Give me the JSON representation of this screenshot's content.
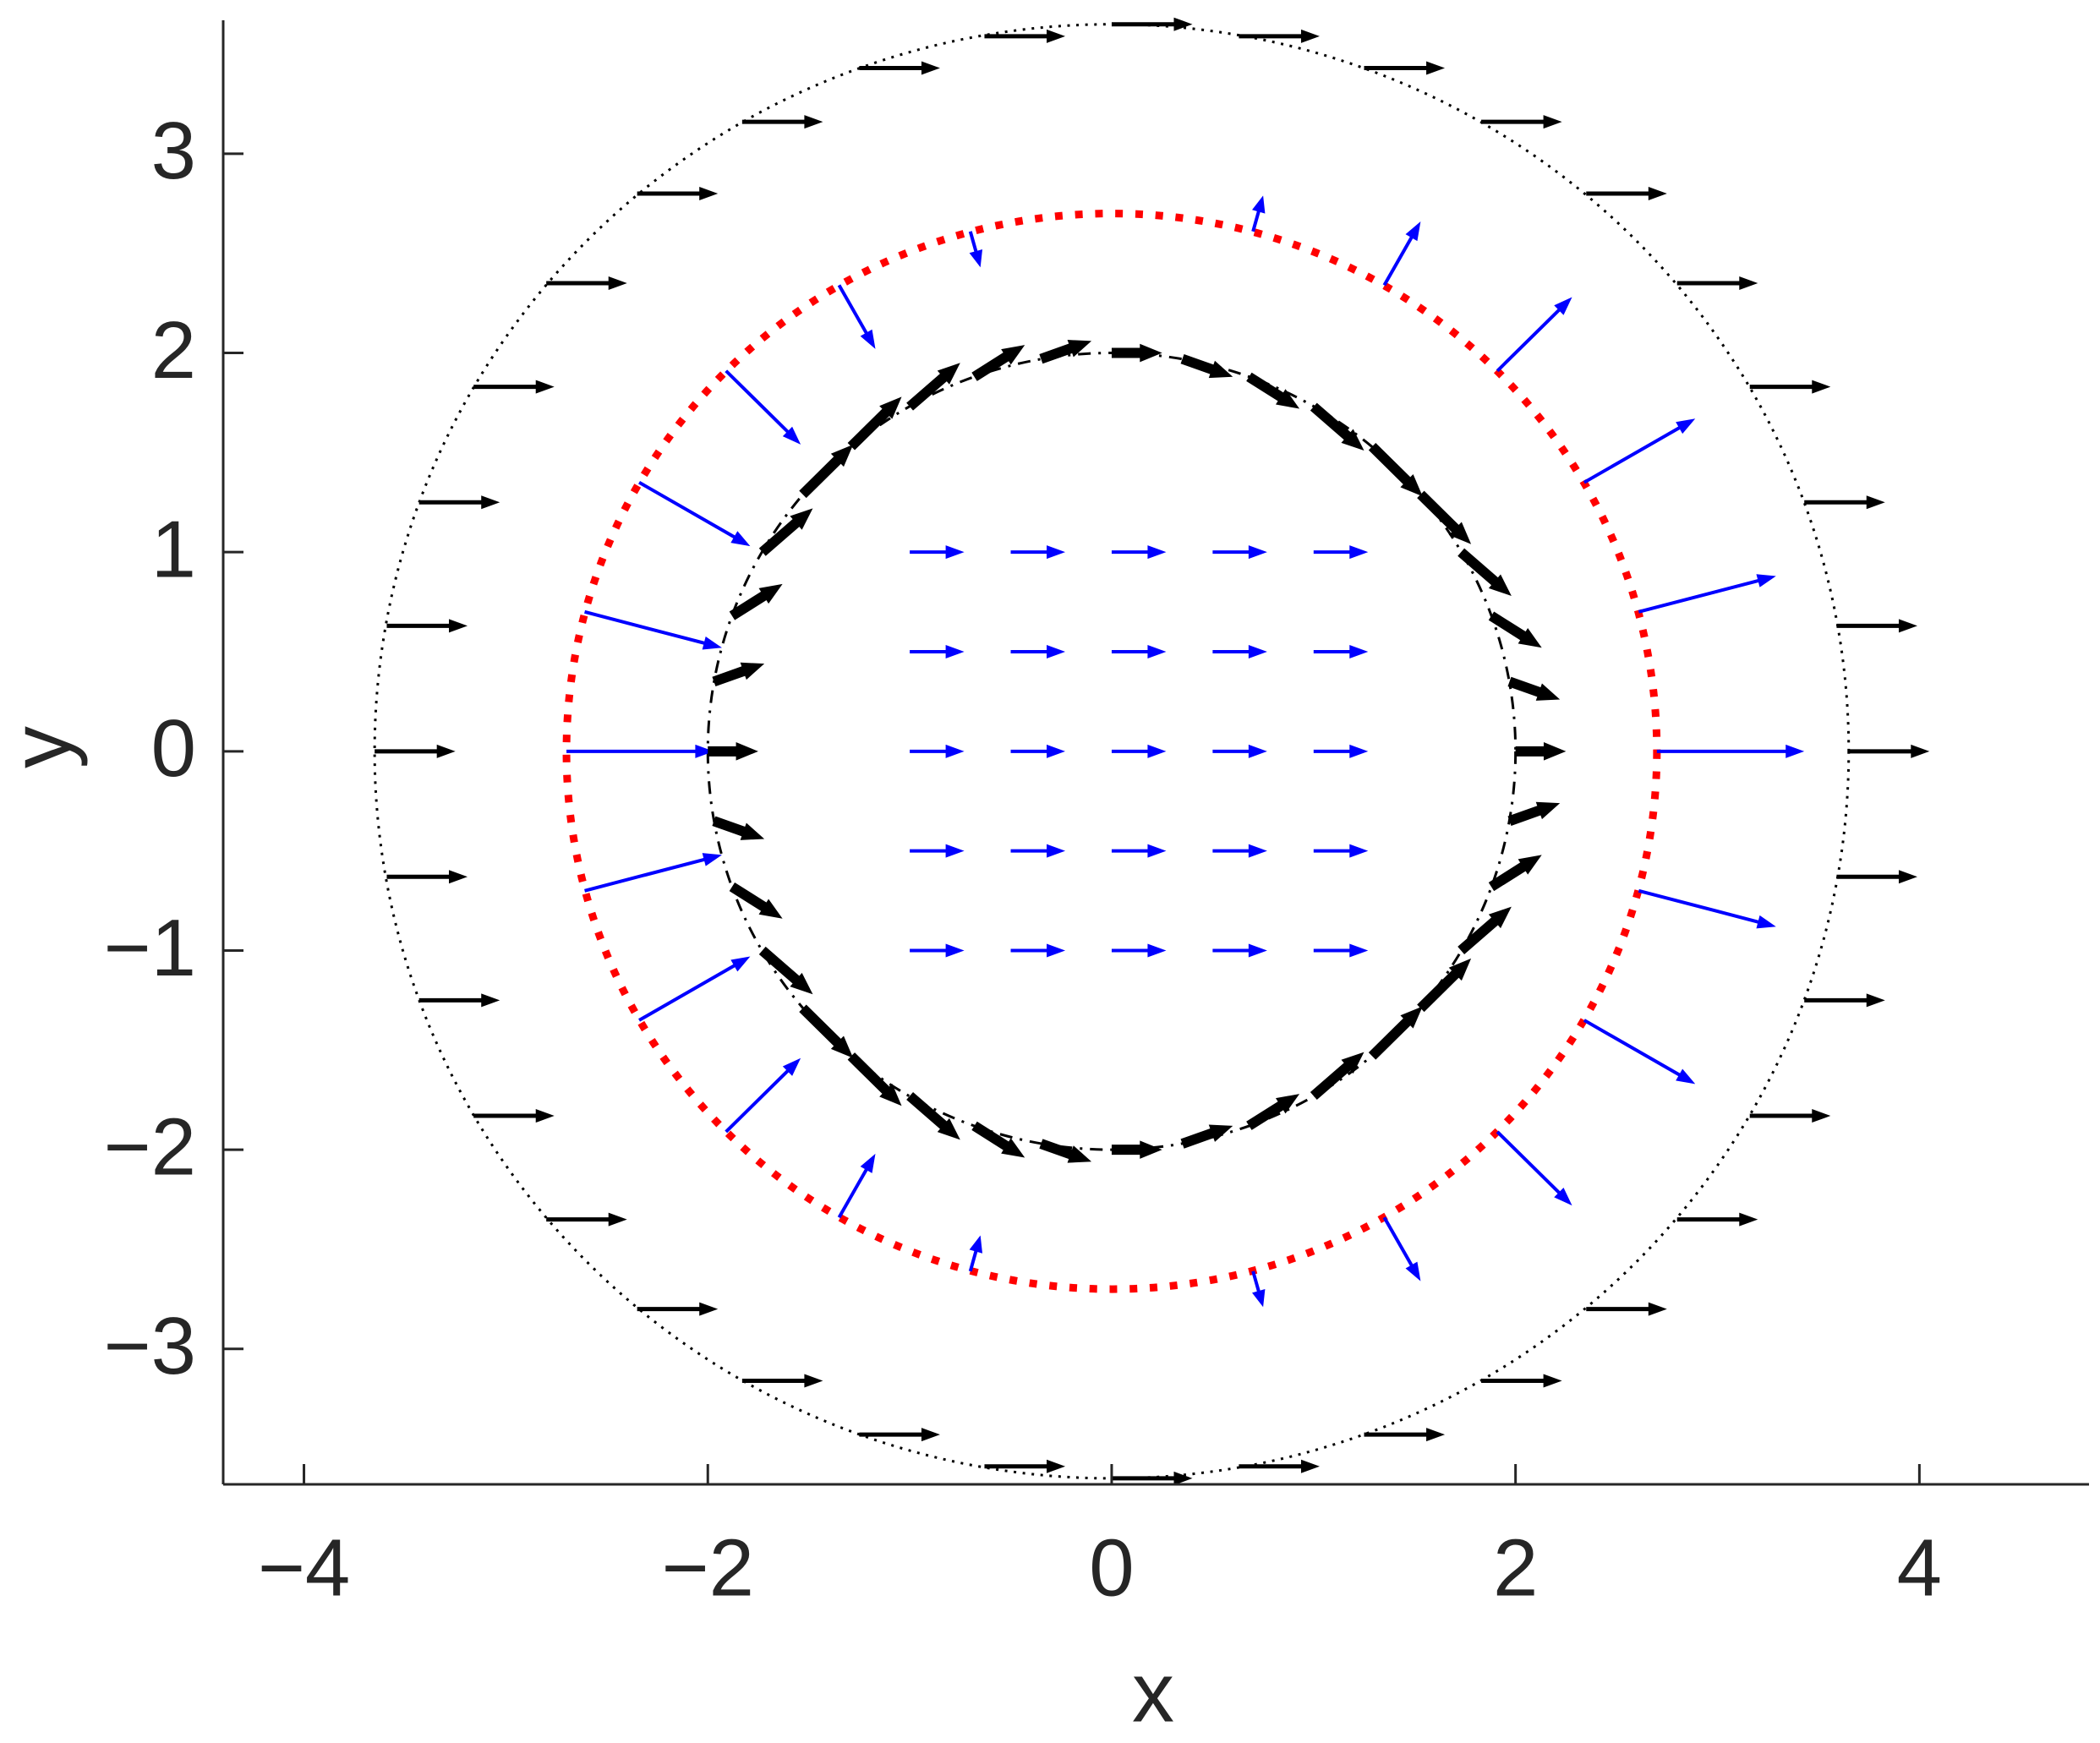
{
  "chart_data": {
    "type": "quiver",
    "xlabel": "x",
    "ylabel": "y",
    "xlim": [
      -4.4,
      4.84
    ],
    "ylim": [
      -3.68,
      3.67
    ],
    "xticks": [
      {
        "value": -4,
        "label": "−4"
      },
      {
        "value": -2,
        "label": "−2"
      },
      0,
      2,
      4
    ],
    "yticks": [
      {
        "value": -3,
        "label": "−3"
      },
      {
        "value": -2,
        "label": "−2"
      },
      {
        "value": -1,
        "label": "−1"
      },
      0,
      1,
      2,
      3
    ],
    "circles": [
      {
        "r": 3.65,
        "color": "#000000",
        "style": "dotted",
        "linewidth": 3
      },
      {
        "r": 2.7,
        "color": "#ff0000",
        "style": "dotted",
        "linewidth": 9
      },
      {
        "r": 2,
        "color": "#000000",
        "style": "dashdot",
        "linewidth": 3
      }
    ],
    "series": [
      {
        "color": "#000000",
        "linewidth": 5,
        "x": [
          3.65,
          3.59,
          3.43,
          3.16,
          2.8,
          2.35,
          1.83,
          1.25,
          0.63,
          0,
          -0.63,
          -1.25,
          -1.83,
          -2.35,
          -2.8,
          -3.16,
          -3.43,
          -3.59,
          -3.65,
          -3.59,
          -3.43,
          -3.16,
          -2.8,
          -2.35,
          -1.83,
          -1.25,
          -0.63,
          0,
          0.63,
          1.25,
          1.83,
          2.35,
          2.8,
          3.16,
          3.43,
          3.59
        ],
        "y": [
          0,
          0.63,
          1.25,
          1.83,
          2.35,
          2.8,
          3.16,
          3.43,
          3.59,
          3.65,
          3.59,
          3.43,
          3.16,
          2.8,
          2.35,
          1.83,
          1.25,
          0.63,
          0,
          -0.63,
          -1.25,
          -1.83,
          -2.35,
          -2.8,
          -3.16,
          -3.43,
          -3.59,
          -3.65,
          -3.59,
          -3.43,
          -3.16,
          -2.8,
          -2.35,
          -1.83,
          -1.25,
          -0.63
        ],
        "u": [
          0.4,
          0.4,
          0.4,
          0.4,
          0.4,
          0.4,
          0.4,
          0.4,
          0.4,
          0.4,
          0.4,
          0.4,
          0.4,
          0.4,
          0.4,
          0.4,
          0.4,
          0.4,
          0.4,
          0.4,
          0.4,
          0.4,
          0.4,
          0.4,
          0.4,
          0.4,
          0.4,
          0.4,
          0.4,
          0.4,
          0.4,
          0.4,
          0.4,
          0.4,
          0.4,
          0.4
        ],
        "v": [
          0,
          0,
          0,
          0,
          0,
          0,
          0,
          0,
          0,
          0,
          0,
          0,
          0,
          0,
          0,
          0,
          0,
          0,
          0,
          0,
          0,
          0,
          0,
          0,
          0,
          0,
          0,
          0,
          0,
          0,
          0,
          0,
          0,
          0,
          0,
          0
        ]
      },
      {
        "color": "#0000ff",
        "linewidth": 4,
        "x": [
          2.7,
          2.61,
          2.34,
          1.91,
          1.35,
          0.7,
          0,
          -0.7,
          -1.35,
          -1.91,
          -2.34,
          -2.61,
          -2.7,
          -2.61,
          -2.34,
          -1.91,
          -1.35,
          -0.7,
          0,
          0.7,
          1.35,
          1.91,
          2.34,
          2.61
        ],
        "y": [
          0,
          0.7,
          1.35,
          1.91,
          2.34,
          2.61,
          2.7,
          2.61,
          2.34,
          1.91,
          1.35,
          0.7,
          0,
          -0.7,
          -1.35,
          -1.91,
          -2.34,
          -2.61,
          -2.7,
          -2.61,
          -2.34,
          -1.91,
          -1.35,
          -0.7
        ],
        "u": [
          0.73,
          0.68,
          0.55,
          0.37,
          0.18,
          0.05,
          0,
          0.05,
          0.18,
          0.37,
          0.55,
          0.68,
          0.73,
          0.68,
          0.55,
          0.37,
          0.18,
          0.05,
          0,
          0.05,
          0.18,
          0.37,
          0.55,
          0.68
        ],
        "v": [
          0,
          0.18,
          0.32,
          0.37,
          0.32,
          0.18,
          0,
          -0.18,
          -0.32,
          -0.37,
          -0.32,
          -0.18,
          0,
          0.18,
          0.32,
          0.37,
          0.32,
          0.18,
          0,
          -0.18,
          -0.32,
          -0.37,
          -0.32,
          -0.18
        ]
      },
      {
        "color": "#000000",
        "linewidth": 12,
        "x": [
          2,
          1.97,
          1.88,
          1.73,
          1.53,
          1.29,
          1,
          0.68,
          0.35,
          0,
          -0.35,
          -0.68,
          -1,
          -1.29,
          -1.53,
          -1.73,
          -1.88,
          -1.97,
          -2,
          -1.97,
          -1.88,
          -1.73,
          -1.53,
          -1.29,
          -1,
          -0.68,
          -0.35,
          0,
          0.35,
          0.68,
          1,
          1.29,
          1.53,
          1.73,
          1.88,
          1.97
        ],
        "y": [
          0,
          0.35,
          0.68,
          1,
          1.29,
          1.53,
          1.73,
          1.88,
          1.97,
          2,
          1.97,
          1.88,
          1.73,
          1.53,
          1.29,
          1,
          0.68,
          0.35,
          0,
          -0.35,
          -0.68,
          -1,
          -1.29,
          -1.53,
          -1.73,
          -1.88,
          -1.97,
          -2,
          -1.97,
          -1.88,
          -1.73,
          -1.53,
          -1.29,
          -1,
          -0.68,
          -0.35
        ],
        "u": [
          0.25,
          0.25,
          0.25,
          0.25,
          0.25,
          0.25,
          0.25,
          0.25,
          0.25,
          0.25,
          0.25,
          0.25,
          0.25,
          0.25,
          0.25,
          0.25,
          0.25,
          0.25,
          0.25,
          0.25,
          0.25,
          0.25,
          0.25,
          0.25,
          0.25,
          0.25,
          0.25,
          0.25,
          0.25,
          0.25,
          0.25,
          0.25,
          0.25,
          0.25,
          0.25,
          0.25
        ],
        "v": [
          0,
          -0.09,
          -0.16,
          -0.22,
          -0.25,
          -0.25,
          -0.22,
          -0.16,
          -0.09,
          0,
          0.09,
          0.16,
          0.22,
          0.25,
          0.25,
          0.22,
          0.16,
          0.09,
          0,
          -0.09,
          -0.16,
          -0.22,
          -0.25,
          -0.25,
          -0.22,
          -0.16,
          -0.09,
          0,
          0.09,
          0.16,
          0.22,
          0.25,
          0.25,
          0.22,
          0.16,
          0.09
        ]
      },
      {
        "color": "#0000ff",
        "linewidth": 4,
        "x": [
          -1,
          -0.5,
          0,
          0.5,
          1,
          -1,
          -0.5,
          0,
          0.5,
          1,
          -1,
          -0.5,
          0,
          0.5,
          1,
          -1,
          -0.5,
          0,
          0.5,
          1,
          -1,
          -0.5,
          0,
          0.5,
          1
        ],
        "y": [
          1,
          1,
          1,
          1,
          1,
          0.5,
          0.5,
          0.5,
          0.5,
          0.5,
          0,
          0,
          0,
          0,
          0,
          -0.5,
          -0.5,
          -0.5,
          -0.5,
          -0.5,
          -1,
          -1,
          -1,
          -1,
          -1
        ],
        "u": [
          0.27,
          0.27,
          0.27,
          0.27,
          0.27,
          0.27,
          0.27,
          0.27,
          0.27,
          0.27,
          0.27,
          0.27,
          0.27,
          0.27,
          0.27,
          0.27,
          0.27,
          0.27,
          0.27,
          0.27,
          0.27,
          0.27,
          0.27,
          0.27,
          0.27
        ],
        "v": [
          0,
          0,
          0,
          0,
          0,
          0,
          0,
          0,
          0,
          0,
          0,
          0,
          0,
          0,
          0,
          0,
          0,
          0,
          0,
          0,
          0,
          0,
          0,
          0,
          0
        ]
      }
    ]
  }
}
